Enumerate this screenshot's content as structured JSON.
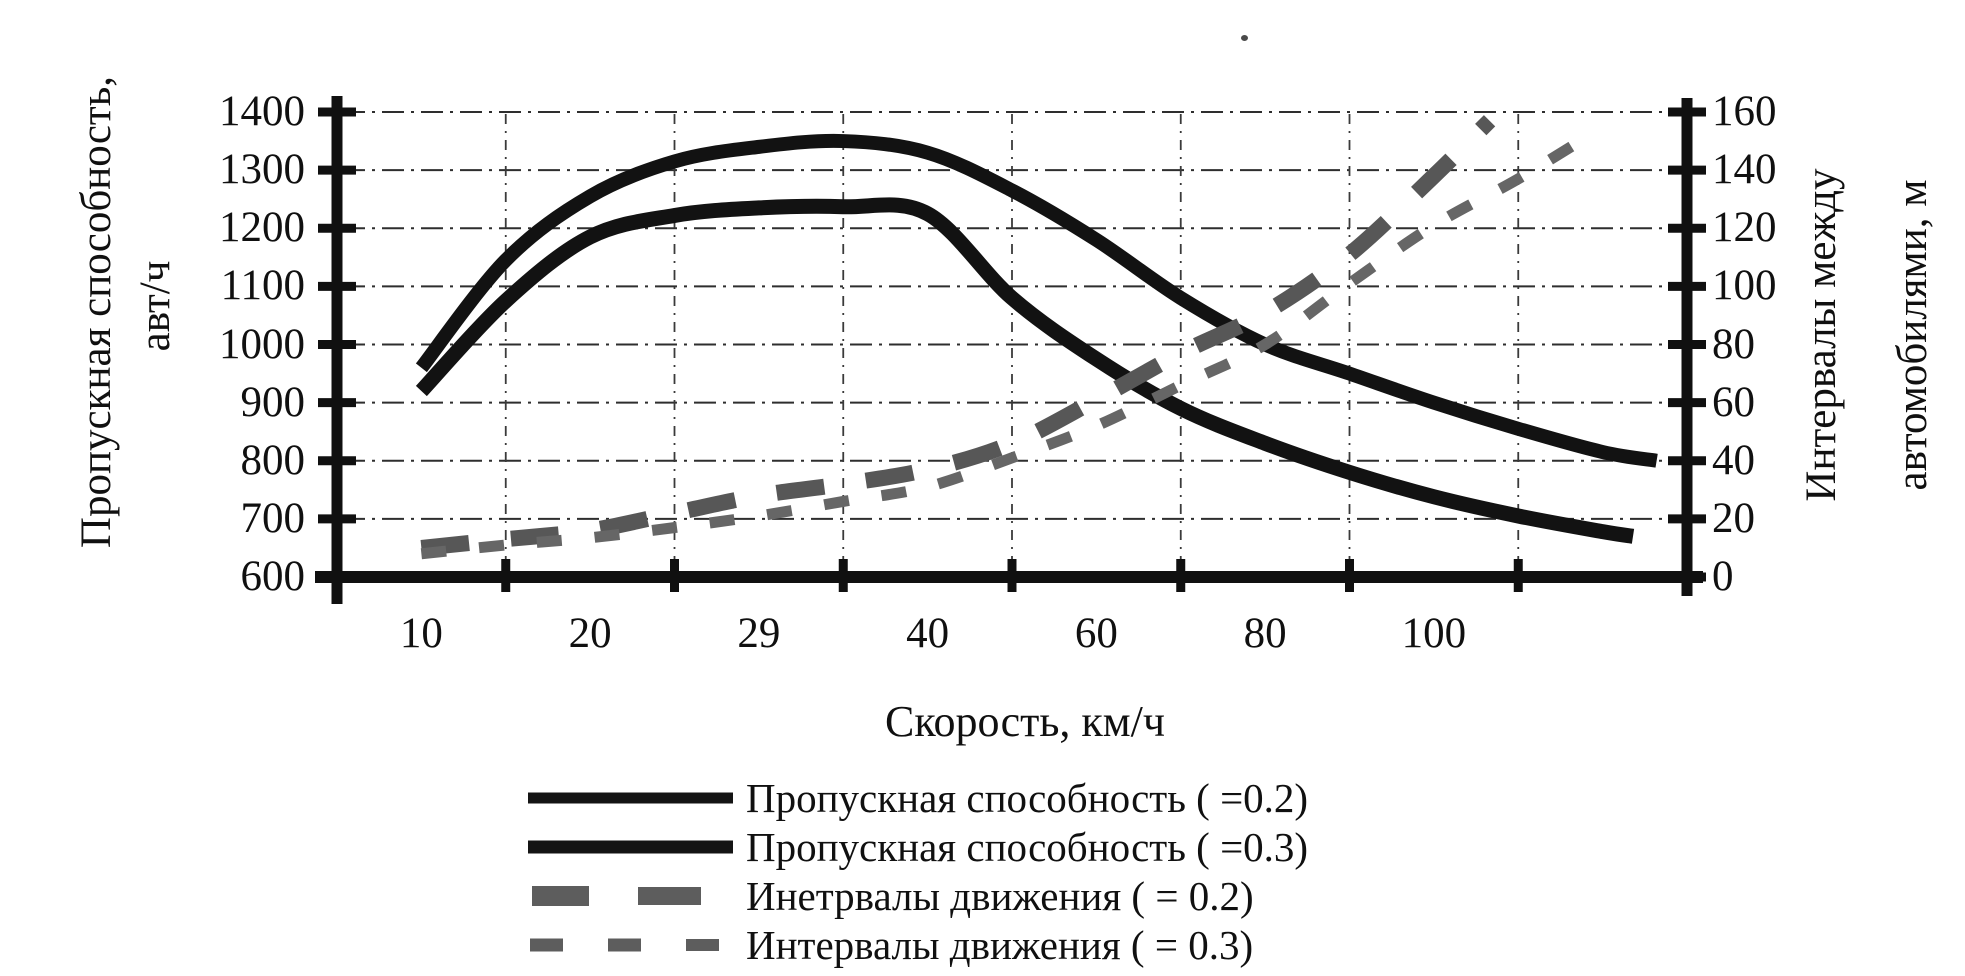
{
  "chart_data": {
    "type": "line",
    "title": "",
    "xlabel": "Скорость, км/ч",
    "x_categories": [
      "10",
      "20",
      "29",
      "40",
      "60",
      "80",
      "100"
    ],
    "x_unit_note": "series point x is in axis units: 0 = left axis, 8 = right axis, category centers at 0.5 .. 6.5 (speeds 10,20,29,40,60,80,100), 7.5 = unlabeled last category",
    "grid": true,
    "legend_position": "bottom",
    "y_left_axis": {
      "title_line1": "Пропускная способность,",
      "title_line2": "авт/ч",
      "min": 600,
      "max": 1400,
      "tick_step": 100,
      "ticks": [
        1400,
        1300,
        1200,
        1100,
        1000,
        900,
        800,
        700,
        600
      ]
    },
    "y_right_axis": {
      "title_line1": "Интервалы между",
      "title_line2": "автомобилями, м",
      "min": 0,
      "max": 160,
      "tick_step": 20,
      "ticks": [
        160,
        140,
        120,
        100,
        80,
        60,
        40,
        20,
        0
      ]
    },
    "series": [
      {
        "id": "capacity-02",
        "name": "Пропускная способность ( =0.2)",
        "axis": "left",
        "line": "solid",
        "color": "#121212",
        "width": 14,
        "points": [
          [
            0.5,
            960
          ],
          [
            1,
            1145
          ],
          [
            1.5,
            1255
          ],
          [
            2,
            1315
          ],
          [
            2.5,
            1340
          ],
          [
            3,
            1350
          ],
          [
            3.5,
            1330
          ],
          [
            4,
            1265
          ],
          [
            4.5,
            1180
          ],
          [
            5,
            1080
          ],
          [
            5.5,
            1000
          ],
          [
            6,
            950
          ],
          [
            6.5,
            900
          ],
          [
            7,
            855
          ],
          [
            7.5,
            815
          ],
          [
            7.82,
            800
          ]
        ]
      },
      {
        "id": "capacity-03",
        "name": "Пропускная способность ( =0.3)",
        "axis": "left",
        "line": "solid",
        "color": "#121212",
        "width": 15,
        "points": [
          [
            0.5,
            920
          ],
          [
            1,
            1075
          ],
          [
            1.5,
            1185
          ],
          [
            2,
            1222
          ],
          [
            2.5,
            1235
          ],
          [
            3,
            1237
          ],
          [
            3.5,
            1225
          ],
          [
            4,
            1080
          ],
          [
            4.5,
            975
          ],
          [
            5,
            890
          ],
          [
            5.5,
            830
          ],
          [
            6,
            780
          ],
          [
            6.5,
            738
          ],
          [
            7,
            705
          ],
          [
            7.5,
            678
          ],
          [
            7.68,
            670
          ]
        ]
      },
      {
        "id": "intervals-02",
        "name": "Инетрвалы движения ( = 0.2)",
        "axis": "right",
        "line": "dashed-thick",
        "color": "#575757",
        "width": 16,
        "dash": [
          48,
          42
        ],
        "points": [
          [
            0.5,
            10
          ],
          [
            1,
            13
          ],
          [
            1.5,
            16
          ],
          [
            2,
            22
          ],
          [
            2.5,
            28
          ],
          [
            3,
            32
          ],
          [
            3.5,
            37
          ],
          [
            4,
            46
          ],
          [
            4.5,
            61
          ],
          [
            5,
            77
          ],
          [
            5.5,
            91
          ],
          [
            6,
            111
          ],
          [
            6.5,
            138
          ],
          [
            6.83,
            157
          ]
        ]
      },
      {
        "id": "intervals-03",
        "name": "Интервалы движения ( = 0.3)",
        "axis": "right",
        "line": "dashed-fine",
        "color": "#666666",
        "width": 11,
        "dash": [
          25,
          33
        ],
        "points": [
          [
            0.5,
            8
          ],
          [
            1,
            11
          ],
          [
            1.5,
            13.5
          ],
          [
            2,
            17
          ],
          [
            2.5,
            21
          ],
          [
            3,
            26
          ],
          [
            3.5,
            31
          ],
          [
            4,
            41
          ],
          [
            4.5,
            52
          ],
          [
            5,
            66
          ],
          [
            5.5,
            80
          ],
          [
            6,
            101
          ],
          [
            6.5,
            121
          ],
          [
            7,
            137
          ],
          [
            7.45,
            153
          ]
        ]
      }
    ]
  },
  "legend": {
    "items": [
      {
        "label": "Пропускная способность ( =0.2)",
        "marker": "solid",
        "marker_height": 11
      },
      {
        "label": "Пропускная способность ( =0.3)",
        "marker": "solid",
        "marker_height": 13
      },
      {
        "label": "Инетрвалы движения ( = 0.2)",
        "marker": "dash-thick"
      },
      {
        "label": "Интервалы движения ( = 0.3)",
        "marker": "dash-fine"
      }
    ]
  }
}
